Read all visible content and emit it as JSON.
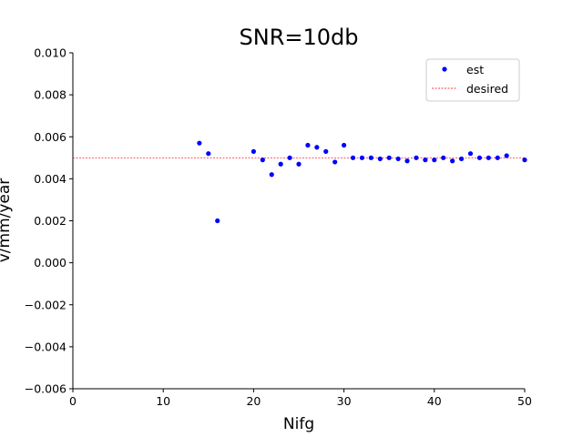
{
  "chart_data": {
    "type": "scatter",
    "title": "SNR=10db",
    "xlabel": "Nifg",
    "ylabel": "v/mm/year",
    "xlim": [
      0,
      50
    ],
    "ylim": [
      -0.006,
      0.01
    ],
    "xticks": [
      0,
      10,
      20,
      30,
      40,
      50
    ],
    "yticks": [
      -0.006,
      -0.004,
      -0.002,
      0.0,
      0.002,
      0.004,
      0.006,
      0.008,
      0.01
    ],
    "xtick_labels": [
      "0",
      "10",
      "20",
      "30",
      "40",
      "50"
    ],
    "ytick_labels": [
      "−0.006",
      "−0.004",
      "−0.002",
      "0.000",
      "0.002",
      "0.004",
      "0.006",
      "0.008",
      "0.010"
    ],
    "grid": false,
    "legend_position": "top-right",
    "series": [
      {
        "name": "est",
        "kind": "scatter",
        "color": "#0000ff",
        "x": [
          14,
          15,
          16,
          20,
          21,
          22,
          23,
          24,
          25,
          26,
          27,
          28,
          29,
          30,
          31,
          32,
          33,
          34,
          35,
          36,
          37,
          38,
          39,
          40,
          41,
          42,
          43,
          44,
          45,
          46,
          47,
          48,
          50
        ],
        "y": [
          0.0057,
          0.0052,
          0.002,
          0.0053,
          0.0049,
          0.0042,
          0.0047,
          0.005,
          0.0047,
          0.0056,
          0.0055,
          0.0053,
          0.0048,
          0.0056,
          0.005,
          0.005,
          0.005,
          0.00495,
          0.005,
          0.00495,
          0.00485,
          0.005,
          0.0049,
          0.0049,
          0.005,
          0.00485,
          0.00495,
          0.0052,
          0.005,
          0.005,
          0.005,
          0.0051,
          0.0049
        ]
      },
      {
        "name": "desired",
        "kind": "hline",
        "color": "#ff0000",
        "y": 0.005
      }
    ]
  }
}
